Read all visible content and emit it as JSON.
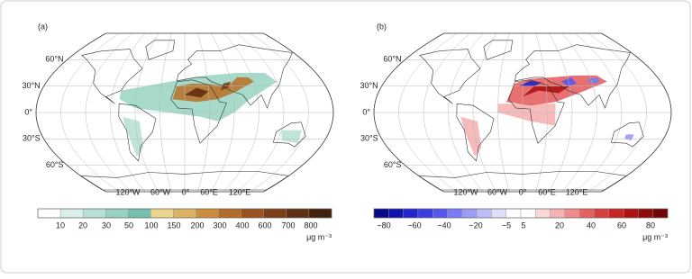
{
  "panels": [
    {
      "label": "(a)",
      "lat_labels": [
        "60°N",
        "30°N",
        "0°",
        "30°S",
        "60°S"
      ],
      "lon_labels": [
        "120°W",
        "60°W",
        "0°",
        "60°E",
        "120°E"
      ],
      "colorbar": {
        "ticks": [
          10,
          20,
          30,
          50,
          100,
          150,
          200,
          300,
          400,
          600,
          700,
          800
        ],
        "colors": [
          "#ffffff",
          "#d8eee8",
          "#b9e0d6",
          "#97d1c3",
          "#74bfae",
          "#e9d68c",
          "#dab262",
          "#ca8e3e",
          "#b46c2b",
          "#9a5320",
          "#7b3f18",
          "#5f2f12",
          "#40210c"
        ],
        "unit": "μg m⁻³"
      }
    },
    {
      "label": "(b)",
      "lat_labels": [
        "60°N",
        "30°N",
        "0°",
        "30°S",
        "60°S"
      ],
      "lon_labels": [
        "120°W",
        "60°W",
        "0°",
        "60°E",
        "120°E"
      ],
      "colorbar": {
        "ticks": [
          "−80",
          "−60",
          "−40",
          "−20",
          "−5",
          "5",
          "20",
          "40",
          "60",
          "80"
        ],
        "colors": [
          "#08088a",
          "#1212b0",
          "#2424cc",
          "#3c3ce0",
          "#5858ee",
          "#7a7af2",
          "#9c9cf5",
          "#bdbdf8",
          "#dedefb",
          "#ffffff",
          "#ffffff",
          "#fbd8d8",
          "#f5b2b2",
          "#ee8a8a",
          "#e46262",
          "#d83e3e",
          "#c82424",
          "#b01212",
          "#900a0a",
          "#700606"
        ],
        "unit": "μg m⁻³"
      }
    }
  ]
}
